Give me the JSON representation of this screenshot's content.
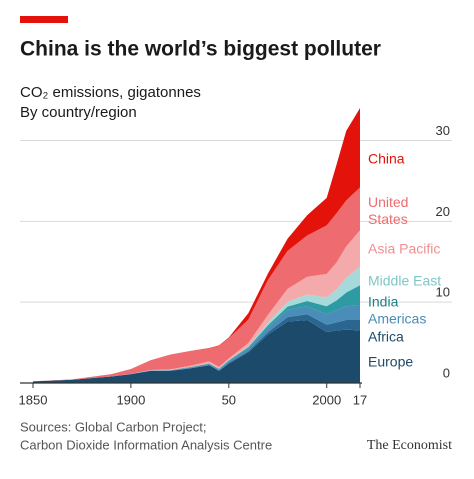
{
  "chart_data": {
    "type": "stacked_area",
    "title": "China is the world’s biggest polluter",
    "subtitle": "CO₂ emissions, gigatonnes",
    "subtitle2": "By country/region",
    "source": [
      "Sources: Global Carbon Project;",
      "Carbon Dioxide Information Analysis Centre"
    ],
    "credit": "The Economist",
    "x": [
      1850,
      1870,
      1890,
      1900,
      1910,
      1920,
      1930,
      1940,
      1945,
      1950,
      1960,
      1970,
      1980,
      1990,
      2000,
      2005,
      2010,
      2017
    ],
    "xlim": [
      1850,
      2017
    ],
    "xticks": [
      1850,
      1900,
      {
        "value": 1950,
        "label": "50"
      },
      2000,
      {
        "value": 2017,
        "label": "17"
      }
    ],
    "ylim": [
      0,
      36
    ],
    "yticks": [
      0,
      10,
      20,
      30
    ],
    "grid": true,
    "series": [
      {
        "name": "Europe",
        "color": "#1b4a6b",
        "values": [
          0.2,
          0.4,
          0.8,
          1.1,
          1.5,
          1.5,
          1.8,
          2.2,
          1.5,
          2.4,
          3.8,
          6.0,
          7.6,
          7.8,
          6.3,
          6.5,
          6.6,
          6.5
        ]
      },
      {
        "name": "Africa",
        "color": "#2a6690",
        "values": [
          0,
          0,
          0,
          0,
          0.01,
          0.02,
          0.03,
          0.05,
          0.05,
          0.1,
          0.15,
          0.3,
          0.55,
          0.7,
          0.9,
          1.0,
          1.2,
          1.3
        ]
      },
      {
        "name": "Americas",
        "color": "#4a8db8",
        "values": [
          0,
          0,
          0,
          0.01,
          0.03,
          0.05,
          0.08,
          0.1,
          0.15,
          0.2,
          0.35,
          0.6,
          0.9,
          1.0,
          1.3,
          1.5,
          1.7,
          1.8
        ]
      },
      {
        "name": "India",
        "color": "#2e9aa3",
        "values": [
          0,
          0,
          0,
          0.01,
          0.02,
          0.03,
          0.05,
          0.06,
          0.07,
          0.1,
          0.15,
          0.25,
          0.4,
          0.65,
          1.0,
          1.2,
          1.7,
          2.5
        ]
      },
      {
        "name": "Middle East",
        "color": "#a6d9d9",
        "values": [
          0,
          0,
          0,
          0,
          0,
          0.01,
          0.01,
          0.02,
          0.03,
          0.05,
          0.1,
          0.3,
          0.6,
          0.8,
          1.1,
          1.4,
          1.8,
          2.3
        ]
      },
      {
        "name": "Asia Pacific",
        "color": "#f4a9ab",
        "values": [
          0,
          0,
          0,
          0.01,
          0.05,
          0.08,
          0.15,
          0.25,
          0.2,
          0.2,
          0.4,
          1.0,
          1.6,
          2.2,
          2.9,
          3.3,
          3.9,
          4.5
        ]
      },
      {
        "name": "United States",
        "color": "#ee6b6f",
        "values": [
          0.02,
          0.05,
          0.3,
          0.6,
          1.2,
          1.8,
          1.8,
          1.6,
          2.6,
          2.5,
          2.9,
          4.3,
          4.7,
          5.1,
          6.0,
          6.1,
          5.7,
          5.3
        ]
      },
      {
        "name": "China",
        "color": "#e3120b",
        "values": [
          0,
          0,
          0,
          0,
          0.01,
          0.02,
          0.03,
          0.05,
          0.05,
          0.08,
          0.8,
          0.8,
          1.5,
          2.5,
          3.4,
          6.0,
          8.6,
          9.8
        ]
      }
    ]
  }
}
